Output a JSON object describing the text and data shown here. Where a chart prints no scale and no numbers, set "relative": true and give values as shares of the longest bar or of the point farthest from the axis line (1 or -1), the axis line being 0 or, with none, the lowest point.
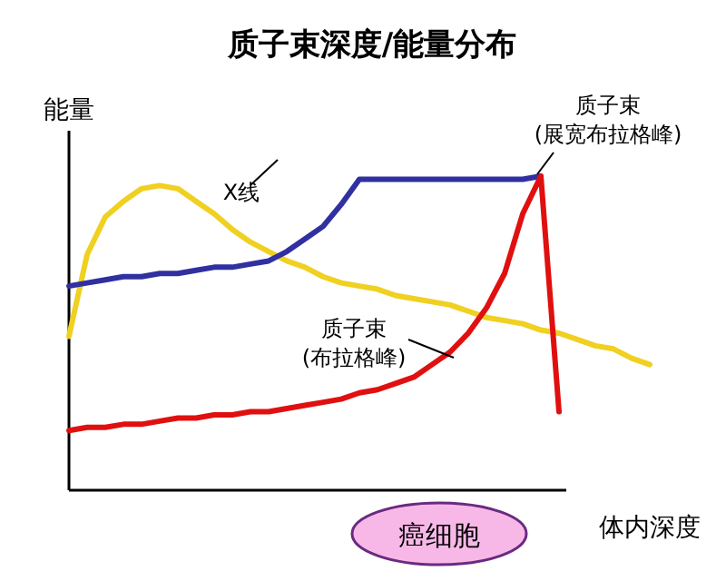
{
  "chart_data": {
    "type": "line",
    "title": "质子束深度/能量分布",
    "xlabel": "体内深度",
    "ylabel": "能量",
    "relative": true,
    "categories": [
      null,
      null,
      null,
      null,
      null,
      null,
      null,
      null,
      null,
      null,
      null,
      null,
      null,
      null,
      null,
      null,
      null,
      null,
      null,
      null,
      null,
      null,
      null,
      null,
      null,
      null,
      null,
      null,
      null,
      null,
      null,
      null,
      null
    ],
    "series": [
      {
        "name": "X线",
        "color": "#f0d020",
        "values": [
          0.49,
          0.75,
          0.87,
          0.92,
          0.96,
          0.97,
          0.96,
          0.92,
          0.88,
          0.83,
          0.79,
          0.76,
          0.73,
          0.71,
          0.68,
          0.66,
          0.65,
          0.64,
          0.62,
          0.61,
          0.6,
          0.59,
          0.57,
          0.55,
          0.54,
          0.53,
          0.51,
          0.5,
          0.48,
          0.46,
          0.45,
          0.42,
          0.4
        ]
      },
      {
        "name": "质子束 (展宽布拉格峰)",
        "color": "#3030a0",
        "values": [
          0.65,
          0.66,
          0.67,
          0.68,
          0.68,
          0.69,
          0.69,
          0.7,
          0.71,
          0.71,
          0.72,
          0.73,
          0.76,
          0.8,
          0.84,
          0.91,
          0.99,
          0.99,
          0.99,
          0.99,
          0.99,
          0.99,
          0.99,
          0.99,
          0.99,
          0.99,
          1.0,
          null,
          null,
          null,
          null,
          null,
          null
        ]
      },
      {
        "name": "质子束 (布拉格峰)",
        "color": "#e01010",
        "values": [
          0.19,
          0.2,
          0.2,
          0.21,
          0.21,
          0.22,
          0.23,
          0.23,
          0.24,
          0.24,
          0.25,
          0.25,
          0.26,
          0.27,
          0.28,
          0.29,
          0.31,
          0.32,
          0.34,
          0.36,
          0.4,
          0.44,
          0.5,
          0.58,
          0.69,
          0.88,
          1.0,
          0.25,
          null,
          null,
          null,
          null,
          null
        ]
      }
    ],
    "annotations": [
      "癌细胞"
    ]
  }
}
